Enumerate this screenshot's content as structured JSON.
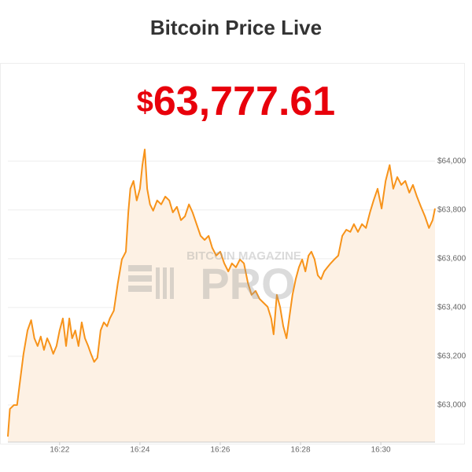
{
  "chart_data": {
    "type": "line",
    "title": "Bitcoin Price Live",
    "price_currency": "$",
    "price_amount": "63,777.61",
    "watermark": [
      "BITCOIN MAGAZINE",
      "PRO"
    ],
    "color": "#f7931a",
    "area_color": "#fdf1e4",
    "grid": true,
    "x": [
      20.71,
      20.76,
      20.86,
      20.94,
      21.0,
      21.1,
      21.2,
      21.29,
      21.37,
      21.45,
      21.53,
      21.61,
      21.69,
      21.76,
      21.84,
      21.92,
      22.0,
      22.08,
      22.16,
      22.24,
      22.31,
      22.39,
      22.47,
      22.55,
      22.63,
      22.71,
      22.78,
      22.86,
      22.94,
      23.02,
      23.1,
      23.18,
      23.25,
      23.35,
      23.45,
      23.55,
      23.65,
      23.71,
      23.76,
      23.84,
      23.92,
      24.0,
      24.06,
      24.12,
      24.18,
      24.25,
      24.33,
      24.43,
      24.53,
      24.63,
      24.73,
      24.82,
      24.92,
      25.02,
      25.12,
      25.22,
      25.31,
      25.41,
      25.51,
      25.61,
      25.71,
      25.8,
      25.9,
      26.0,
      26.1,
      26.2,
      26.29,
      26.39,
      26.49,
      26.59,
      26.69,
      26.78,
      26.88,
      26.98,
      27.08,
      27.18,
      27.27,
      27.33,
      27.41,
      27.49,
      27.57,
      27.65,
      27.73,
      27.8,
      27.88,
      27.96,
      28.04,
      28.12,
      28.2,
      28.27,
      28.35,
      28.43,
      28.51,
      28.59,
      28.67,
      28.75,
      28.84,
      28.94,
      29.04,
      29.14,
      29.24,
      29.33,
      29.43,
      29.53,
      29.63,
      29.73,
      29.82,
      29.92,
      30.02,
      30.12,
      30.22,
      30.31,
      30.41,
      30.51,
      30.61,
      30.71,
      30.8,
      30.9,
      31.0,
      31.1,
      31.2,
      31.29,
      31.35
    ],
    "values": [
      62871,
      62984,
      63000,
      63000,
      63081,
      63210,
      63306,
      63348,
      63274,
      63242,
      63281,
      63226,
      63274,
      63248,
      63210,
      63242,
      63306,
      63355,
      63242,
      63355,
      63274,
      63306,
      63242,
      63339,
      63274,
      63242,
      63210,
      63177,
      63194,
      63306,
      63339,
      63323,
      63355,
      63387,
      63500,
      63597,
      63629,
      63790,
      63887,
      63919,
      63839,
      63887,
      63984,
      64048,
      63887,
      63823,
      63797,
      63839,
      63823,
      63855,
      63839,
      63790,
      63813,
      63758,
      63774,
      63823,
      63790,
      63742,
      63694,
      63677,
      63694,
      63645,
      63613,
      63629,
      63581,
      63548,
      63581,
      63565,
      63597,
      63581,
      63500,
      63452,
      63468,
      63435,
      63419,
      63403,
      63355,
      63290,
      63452,
      63403,
      63323,
      63274,
      63371,
      63452,
      63516,
      63565,
      63597,
      63548,
      63613,
      63629,
      63597,
      63532,
      63516,
      63548,
      63565,
      63581,
      63597,
      63613,
      63694,
      63719,
      63710,
      63742,
      63710,
      63742,
      63726,
      63790,
      63839,
      63887,
      63806,
      63919,
      63984,
      63887,
      63935,
      63903,
      63919,
      63871,
      63903,
      63855,
      63813,
      63774,
      63726,
      63758,
      63806
    ],
    "xlim": [
      20.71,
      31.35
    ],
    "ylim": [
      62848,
      64403
    ],
    "xticks": [
      {
        "value": 22,
        "label": "16:22"
      },
      {
        "value": 24,
        "label": "16:24"
      },
      {
        "value": 26,
        "label": "16:26"
      },
      {
        "value": 28,
        "label": "16:28"
      },
      {
        "value": 30,
        "label": "16:30"
      }
    ],
    "yticks": [
      {
        "value": 63000,
        "label": "$63,000"
      },
      {
        "value": 63200,
        "label": "$63,200"
      },
      {
        "value": 63400,
        "label": "$63,400"
      },
      {
        "value": 63600,
        "label": "$63,600"
      },
      {
        "value": 63800,
        "label": "$63,800"
      },
      {
        "value": 64000,
        "label": "$64,000"
      }
    ]
  }
}
